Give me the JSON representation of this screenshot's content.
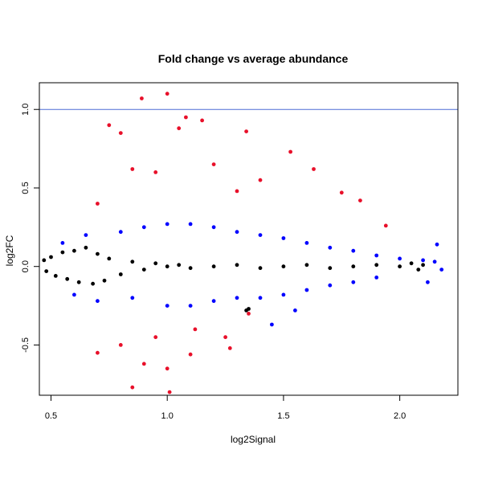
{
  "chart_data": {
    "type": "scatter",
    "title": "Fold change vs average abundance",
    "xlabel": "log2Signal",
    "ylabel": "log2FC",
    "xlim": [
      0.45,
      2.25
    ],
    "ylim": [
      -0.82,
      1.17
    ],
    "x_ticks": [
      {
        "value": 0.5,
        "label": "0.5"
      },
      {
        "value": 1.0,
        "label": "1.0"
      },
      {
        "value": 1.5,
        "label": "1.5"
      },
      {
        "value": 2.0,
        "label": "2.0"
      }
    ],
    "y_ticks": [
      {
        "value": -0.5,
        "label": "-0.5"
      },
      {
        "value": 0.0,
        "label": "0.0"
      },
      {
        "value": 0.5,
        "label": "0.5"
      },
      {
        "value": 1.0,
        "label": "1.0"
      }
    ],
    "reference_line": {
      "y": 1.0,
      "color": "#4d6bd6"
    },
    "grid": false,
    "legend": "none",
    "series": [
      {
        "color": "#000000",
        "points": [
          [
            0.47,
            0.04
          ],
          [
            0.48,
            -0.03
          ],
          [
            0.5,
            0.06
          ],
          [
            0.52,
            -0.06
          ],
          [
            0.55,
            0.09
          ],
          [
            0.57,
            -0.08
          ],
          [
            0.6,
            0.1
          ],
          [
            0.62,
            -0.1
          ],
          [
            0.65,
            0.12
          ],
          [
            0.68,
            -0.11
          ],
          [
            0.7,
            0.08
          ],
          [
            0.73,
            -0.09
          ],
          [
            0.75,
            0.05
          ],
          [
            0.8,
            -0.05
          ],
          [
            0.85,
            0.03
          ],
          [
            0.9,
            -0.02
          ],
          [
            0.95,
            0.02
          ],
          [
            1.0,
            0.0
          ],
          [
            1.05,
            0.01
          ],
          [
            1.1,
            -0.01
          ],
          [
            1.2,
            0.0
          ],
          [
            1.3,
            0.01
          ],
          [
            1.4,
            -0.01
          ],
          [
            1.5,
            0.0
          ],
          [
            1.6,
            0.01
          ],
          [
            1.7,
            -0.01
          ],
          [
            1.8,
            0.0
          ],
          [
            1.9,
            0.01
          ],
          [
            2.0,
            0.0
          ],
          [
            2.05,
            0.02
          ],
          [
            2.08,
            -0.02
          ],
          [
            2.1,
            0.01
          ],
          [
            1.34,
            -0.28
          ],
          [
            1.35,
            -0.27
          ]
        ]
      },
      {
        "color": "#0000ff",
        "points": [
          [
            0.55,
            0.15
          ],
          [
            0.6,
            -0.18
          ],
          [
            0.65,
            0.2
          ],
          [
            0.7,
            -0.22
          ],
          [
            0.8,
            0.22
          ],
          [
            0.85,
            -0.2
          ],
          [
            0.9,
            0.25
          ],
          [
            1.0,
            0.27
          ],
          [
            1.1,
            0.27
          ],
          [
            1.2,
            0.25
          ],
          [
            1.3,
            0.22
          ],
          [
            1.4,
            0.2
          ],
          [
            1.5,
            0.18
          ],
          [
            1.6,
            0.15
          ],
          [
            1.7,
            0.12
          ],
          [
            1.8,
            0.1
          ],
          [
            1.9,
            0.07
          ],
          [
            2.0,
            0.05
          ],
          [
            2.1,
            0.04
          ],
          [
            2.15,
            0.03
          ],
          [
            2.18,
            -0.02
          ],
          [
            2.16,
            0.14
          ],
          [
            2.12,
            -0.1
          ],
          [
            1.0,
            -0.25
          ],
          [
            1.1,
            -0.25
          ],
          [
            1.2,
            -0.22
          ],
          [
            1.3,
            -0.2
          ],
          [
            1.4,
            -0.2
          ],
          [
            1.5,
            -0.18
          ],
          [
            1.6,
            -0.15
          ],
          [
            1.7,
            -0.12
          ],
          [
            1.8,
            -0.1
          ],
          [
            1.9,
            -0.07
          ],
          [
            1.45,
            -0.37
          ],
          [
            1.55,
            -0.28
          ]
        ]
      },
      {
        "color": "#e8102a",
        "points": [
          [
            0.89,
            1.07
          ],
          [
            1.0,
            1.1
          ],
          [
            1.08,
            0.95
          ],
          [
            1.15,
            0.93
          ],
          [
            1.05,
            0.88
          ],
          [
            0.75,
            0.9
          ],
          [
            0.8,
            0.85
          ],
          [
            1.34,
            0.86
          ],
          [
            1.53,
            0.73
          ],
          [
            1.63,
            0.62
          ],
          [
            1.75,
            0.47
          ],
          [
            1.83,
            0.42
          ],
          [
            1.94,
            0.26
          ],
          [
            0.7,
            0.4
          ],
          [
            0.85,
            0.62
          ],
          [
            0.95,
            0.6
          ],
          [
            1.2,
            0.65
          ],
          [
            1.4,
            0.55
          ],
          [
            1.3,
            0.48
          ],
          [
            1.0,
            -0.65
          ],
          [
            1.01,
            -0.8
          ],
          [
            0.85,
            -0.77
          ],
          [
            0.9,
            -0.62
          ],
          [
            1.1,
            -0.56
          ],
          [
            1.25,
            -0.45
          ],
          [
            1.35,
            -0.3
          ],
          [
            0.7,
            -0.55
          ],
          [
            0.8,
            -0.5
          ],
          [
            1.27,
            -0.52
          ],
          [
            1.12,
            -0.4
          ],
          [
            0.95,
            -0.45
          ]
        ]
      }
    ]
  }
}
